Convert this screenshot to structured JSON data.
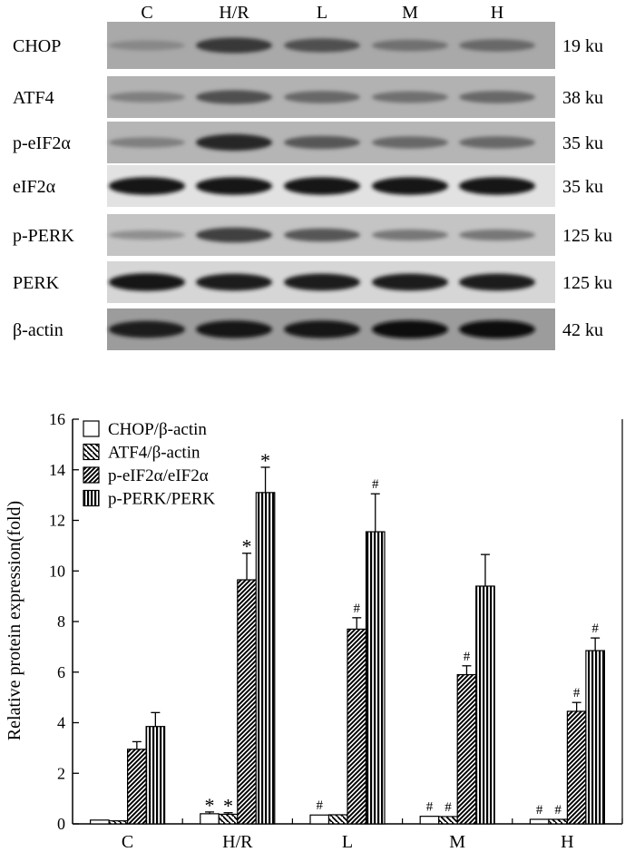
{
  "blot": {
    "lanes": [
      "C",
      "H/R",
      "L",
      "M",
      "H"
    ],
    "rows": [
      {
        "protein": "CHOP",
        "size": "19 ku",
        "bg": "#a9a9a9",
        "intensity": [
          0.25,
          0.75,
          0.6,
          0.4,
          0.45
        ]
      },
      {
        "protein": "ATF4",
        "size": "38 ku",
        "bg": "#b2b2b2",
        "intensity": [
          0.3,
          0.6,
          0.45,
          0.4,
          0.45
        ]
      },
      {
        "protein": "p-eIF2α",
        "size": "35 ku",
        "bg": "#b5b5b5",
        "intensity": [
          0.3,
          0.85,
          0.55,
          0.45,
          0.45
        ]
      },
      {
        "protein": "eIF2α",
        "size": "35 ku",
        "bg": "#e2e2e2",
        "intensity": [
          0.95,
          0.95,
          0.95,
          0.95,
          0.95
        ]
      },
      {
        "protein": "p-PERK",
        "size": "125 ku",
        "bg": "#c4c4c4",
        "intensity": [
          0.2,
          0.7,
          0.55,
          0.35,
          0.35
        ]
      },
      {
        "protein": "PERK",
        "size": "125 ku",
        "bg": "#d6d6d6",
        "intensity": [
          0.95,
          0.9,
          0.9,
          0.9,
          0.9
        ]
      },
      {
        "protein": "β-actin",
        "size": "42 ku",
        "bg": "#9c9c9c",
        "intensity": [
          0.9,
          0.95,
          0.95,
          1.0,
          1.0
        ]
      }
    ]
  },
  "chart_data": {
    "type": "bar",
    "categories": [
      "C",
      "H/R",
      "L",
      "M",
      "H"
    ],
    "ylabel": "Relative protein expression(fold)",
    "xlabel": "",
    "ylim": [
      0,
      16
    ],
    "yticks": [
      0,
      2,
      4,
      6,
      8,
      10,
      12,
      14,
      16
    ],
    "legend_position": "top-left",
    "series": [
      {
        "name": "CHOP/β-actin",
        "pattern": "white",
        "values": [
          0.15,
          0.4,
          0.35,
          0.3,
          0.18
        ],
        "errors": [
          0,
          0.07,
          0,
          0,
          0
        ],
        "marks": [
          "",
          "*",
          "#",
          "#",
          "#"
        ]
      },
      {
        "name": "ATF4/β-actin",
        "pattern": "back-diagonal",
        "values": [
          0.12,
          0.38,
          0.36,
          0.29,
          0.18
        ],
        "errors": [
          0,
          0.06,
          0,
          0,
          0
        ],
        "marks": [
          "",
          "*",
          "",
          "#",
          "#"
        ]
      },
      {
        "name": "p-eIF2α/eIF2α",
        "pattern": "forward-diagonal",
        "values": [
          2.95,
          9.65,
          7.7,
          5.9,
          4.45
        ],
        "errors": [
          0.3,
          1.05,
          0.45,
          0.35,
          0.35
        ],
        "marks": [
          "",
          "*",
          "#",
          "#",
          "#"
        ]
      },
      {
        "name": "p-PERK/PERK",
        "pattern": "vertical",
        "values": [
          3.85,
          13.1,
          11.55,
          9.4,
          6.85
        ],
        "errors": [
          0.55,
          1.0,
          1.5,
          1.25,
          0.5
        ],
        "marks": [
          "",
          "*",
          "#",
          "",
          "#"
        ]
      }
    ]
  }
}
